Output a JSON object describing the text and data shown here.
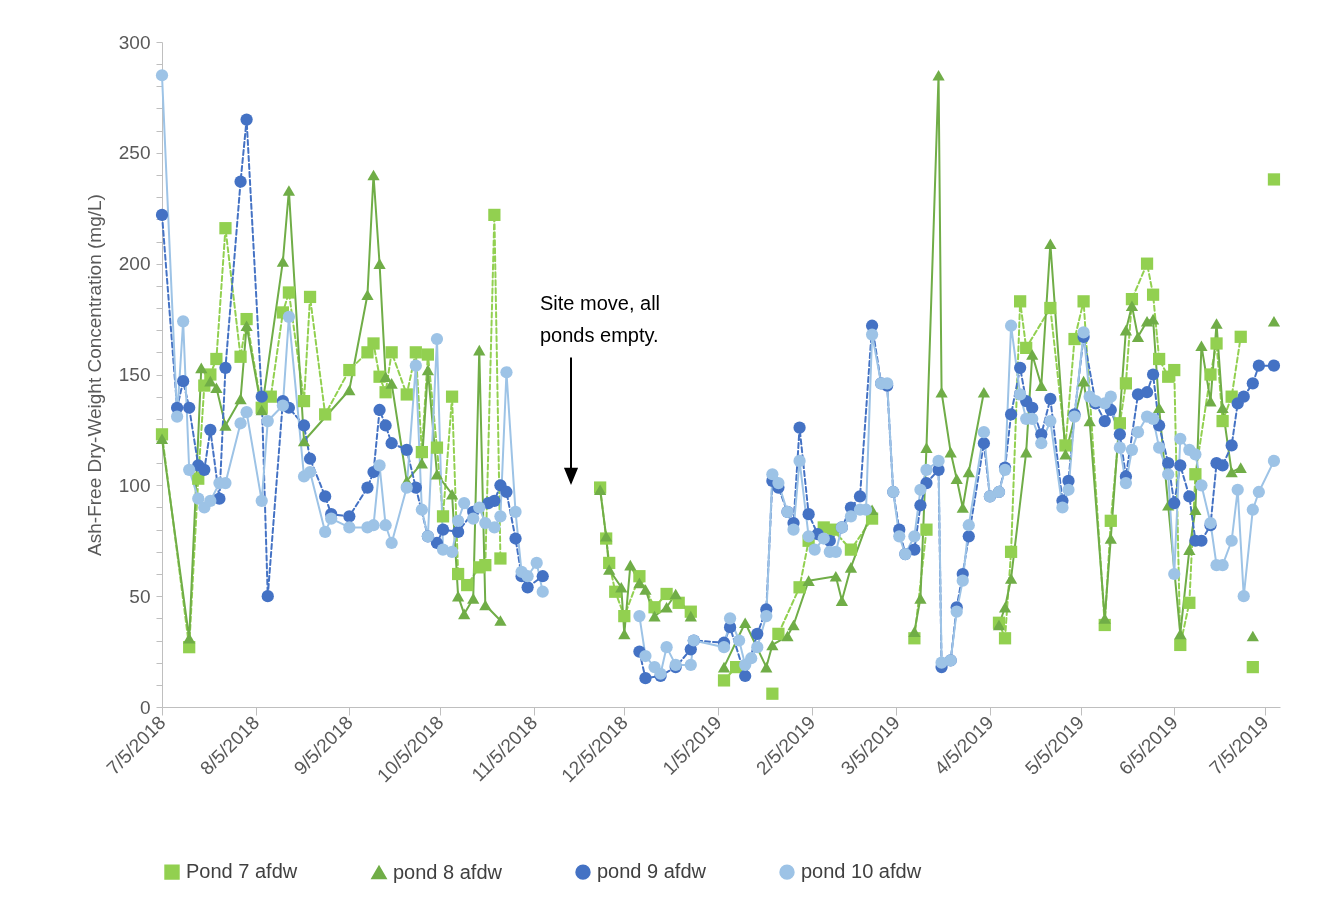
{
  "chart_data": {
    "type": "line",
    "ylabel": "Ash-Free Dry-Weight Concentration (mg/L)",
    "legend": "bottom",
    "xlim": [
      "2018-07-05",
      "2019-07-10"
    ],
    "xticks": [
      {
        "value": "2018-07-05",
        "label": "7/5/2018"
      },
      {
        "value": "2018-08-05",
        "label": "8/5/2018"
      },
      {
        "value": "2018-09-05",
        "label": "9/5/2018"
      },
      {
        "value": "2018-10-05",
        "label": "10/5/2018"
      },
      {
        "value": "2018-11-05",
        "label": "11/5/2018"
      },
      {
        "value": "2018-12-05",
        "label": "12/5/2018"
      },
      {
        "value": "2019-01-05",
        "label": "1/5/2019"
      },
      {
        "value": "2019-02-05",
        "label": "2/5/2019"
      },
      {
        "value": "2019-03-05",
        "label": "3/5/2019"
      },
      {
        "value": "2019-04-05",
        "label": "4/5/2019"
      },
      {
        "value": "2019-05-05",
        "label": "5/5/2019"
      },
      {
        "value": "2019-06-05",
        "label": "6/5/2019"
      },
      {
        "value": "2019-07-05",
        "label": "7/5/2019"
      }
    ],
    "ylim": [
      0,
      300
    ],
    "yticks": [
      0,
      {
        "value": 10,
        "label": null
      },
      {
        "value": 20,
        "label": null
      },
      {
        "value": 30,
        "label": null
      },
      {
        "value": 40,
        "label": null
      },
      50,
      {
        "value": 60,
        "label": null
      },
      {
        "value": 70,
        "label": null
      },
      {
        "value": 80,
        "label": null
      },
      {
        "value": 90,
        "label": null
      },
      100,
      {
        "value": 110,
        "label": null
      },
      {
        "value": 120,
        "label": null
      },
      {
        "value": 130,
        "label": null
      },
      {
        "value": 140,
        "label": null
      },
      150,
      {
        "value": 160,
        "label": null
      },
      {
        "value": 170,
        "label": null
      },
      {
        "value": 180,
        "label": null
      },
      {
        "value": 190,
        "label": null
      },
      200,
      {
        "value": 210,
        "label": null
      },
      {
        "value": 220,
        "label": null
      },
      {
        "value": 230,
        "label": null
      },
      {
        "value": 240,
        "label": null
      },
      250,
      {
        "value": 260,
        "label": null
      },
      {
        "value": 270,
        "label": null
      },
      {
        "value": 280,
        "label": null
      },
      {
        "value": 290,
        "label": null
      },
      300
    ],
    "annotations": [
      "Site move, all ponds empty."
    ],
    "series": [
      {
        "name": "Pond 7 afdw",
        "color": "#92d050",
        "marker": "square",
        "line_style": "dashed",
        "x": [
          "2018-07-05",
          "2018-07-14",
          "2018-07-17",
          "2018-07-19",
          "2018-07-21",
          "2018-07-23",
          "2018-07-26",
          "2018-07-31",
          "2018-08-02",
          "2018-08-07",
          "2018-08-10",
          "2018-08-14",
          "2018-08-16",
          "2018-08-21",
          "2018-08-23",
          "2018-08-28",
          "2018-09-05",
          "2018-09-11",
          "2018-09-13",
          "2018-09-15",
          "2018-09-17",
          "2018-09-19",
          "2018-09-24",
          "2018-09-27",
          "2018-09-29",
          "2018-10-01",
          "2018-10-04",
          "2018-10-06",
          "2018-10-09",
          "2018-10-11",
          "2018-10-14",
          "2018-10-18",
          "2018-10-20",
          "2018-10-23",
          "2018-10-25",
          "2018-11-15",
          "2018-11-27",
          "2018-11-29",
          "2018-11-30",
          "2018-12-02",
          "2018-12-05",
          "2018-12-10",
          "2018-12-15",
          "2018-12-19",
          "2018-12-23",
          "2018-12-27",
          "2019-01-02",
          "2019-01-07",
          "2019-01-11",
          "2019-01-17",
          "2019-01-23",
          "2019-01-24",
          "2019-01-25",
          "2019-02-01",
          "2019-02-04",
          "2019-02-09",
          "2019-02-12",
          "2019-02-18",
          "2019-02-25",
          "2019-03-05",
          "2019-03-11",
          "2019-03-15",
          "2019-03-28",
          "2019-04-08",
          "2019-04-10",
          "2019-04-12",
          "2019-04-15",
          "2019-04-17",
          "2019-04-25",
          "2019-04-30",
          "2019-05-03",
          "2019-05-06",
          "2019-05-13",
          "2019-05-15",
          "2019-05-18",
          "2019-05-20",
          "2019-05-22",
          "2019-05-27",
          "2019-05-29",
          "2019-05-31",
          "2019-06-03",
          "2019-06-05",
          "2019-06-07",
          "2019-06-10",
          "2019-06-12",
          "2019-06-17",
          "2019-06-19",
          "2019-06-21",
          "2019-06-24",
          "2019-06-27",
          "2019-06-29",
          "2019-07-01",
          "2019-07-05",
          "2019-07-08"
        ],
        "values": [
          123,
          27,
          103,
          145,
          150,
          157,
          216,
          158,
          175,
          135,
          140,
          178,
          187,
          138,
          185,
          132,
          152,
          160,
          164,
          149,
          142,
          160,
          141,
          160,
          115,
          159,
          117,
          86,
          140,
          60,
          55,
          63,
          64,
          222,
          67,
          null,
          99,
          76,
          65,
          52,
          41,
          59,
          45,
          51,
          47,
          43,
          null,
          12,
          18,
          null,
          6,
          null,
          33,
          54,
          75,
          81,
          80,
          71,
          85,
          null,
          31,
          80,
          null,
          38,
          31,
          70,
          183,
          162,
          180,
          118,
          166,
          183,
          37,
          84,
          128,
          146,
          184,
          200,
          186,
          157,
          149,
          152,
          28,
          47,
          105,
          150,
          164,
          129,
          140,
          167,
          null,
          18,
          null,
          238
        ]
      },
      {
        "name": "pond 8 afdw",
        "color": "#70ad47",
        "marker": "triangle",
        "line_style": "solid",
        "x": [
          "2018-07-05",
          "2018-07-14",
          "2018-07-18",
          "2018-07-21",
          "2018-07-23",
          "2018-07-26",
          "2018-07-31",
          "2018-08-02",
          "2018-08-07",
          "2018-08-14",
          "2018-08-16",
          "2018-08-21",
          "2018-09-05",
          "2018-09-11",
          "2018-09-13",
          "2018-09-15",
          "2018-09-17",
          "2018-09-19",
          "2018-09-24",
          "2018-09-29",
          "2018-10-01",
          "2018-10-04",
          "2018-10-09",
          "2018-10-11",
          "2018-10-13",
          "2018-10-16",
          "2018-10-18",
          "2018-10-20",
          "2018-10-25",
          "2018-11-15",
          "2018-11-27",
          "2018-11-29",
          "2018-11-30",
          "2018-12-04",
          "2018-12-05",
          "2018-12-07",
          "2018-12-10",
          "2018-12-12",
          "2018-12-15",
          "2018-12-19",
          "2018-12-22",
          "2018-12-27",
          "2019-01-02",
          "2019-01-07",
          "2019-01-14",
          "2019-01-21",
          "2019-01-23",
          "2019-01-28",
          "2019-01-30",
          "2019-02-04",
          "2019-02-13",
          "2019-02-15",
          "2019-02-18",
          "2019-02-25",
          "2019-03-05",
          "2019-03-11",
          "2019-03-13",
          "2019-03-15",
          "2019-03-19",
          "2019-03-20",
          "2019-03-23",
          "2019-03-25",
          "2019-03-27",
          "2019-03-29",
          "2019-04-03",
          "2019-04-06",
          "2019-04-08",
          "2019-04-10",
          "2019-04-12",
          "2019-04-17",
          "2019-04-19",
          "2019-04-22",
          "2019-04-25",
          "2019-04-30",
          "2019-05-06",
          "2019-05-08",
          "2019-05-13",
          "2019-05-15",
          "2019-05-20",
          "2019-05-22",
          "2019-05-24",
          "2019-05-27",
          "2019-05-29",
          "2019-05-31",
          "2019-06-03",
          "2019-06-07",
          "2019-06-10",
          "2019-06-12",
          "2019-06-14",
          "2019-06-17",
          "2019-06-19",
          "2019-06-21",
          "2019-06-24",
          "2019-06-27",
          "2019-06-29",
          "2019-07-01",
          "2019-07-05",
          "2019-07-08"
        ],
        "values": [
          121,
          31,
          153,
          147,
          144,
          127,
          139,
          172,
          134,
          201,
          233,
          120,
          143,
          186,
          240,
          200,
          149,
          146,
          102,
          110,
          152,
          105,
          96,
          50,
          42,
          49,
          161,
          46,
          39,
          null,
          98,
          77,
          62,
          54,
          33,
          64,
          56,
          53,
          41,
          45,
          51,
          41,
          null,
          18,
          38,
          18,
          28,
          32,
          37,
          57,
          59,
          48,
          63,
          89,
          null,
          34,
          49,
          117,
          285,
          142,
          115,
          103,
          90,
          106,
          142,
          null,
          37,
          45,
          58,
          115,
          159,
          145,
          209,
          114,
          147,
          129,
          40,
          76,
          170,
          181,
          167,
          174,
          175,
          135,
          91,
          33,
          71,
          89,
          163,
          138,
          173,
          135,
          106,
          108,
          null,
          32,
          null,
          174
        ]
      },
      {
        "name": "pond 9 afdw",
        "color": "#4472c4",
        "marker": "circle",
        "line_style": "dashed",
        "x": [
          "2018-07-05",
          "2018-07-10",
          "2018-07-12",
          "2018-07-14",
          "2018-07-17",
          "2018-07-19",
          "2018-07-21",
          "2018-07-24",
          "2018-07-26",
          "2018-07-31",
          "2018-08-02",
          "2018-08-07",
          "2018-08-09",
          "2018-08-14",
          "2018-08-16",
          "2018-08-21",
          "2018-08-23",
          "2018-08-28",
          "2018-08-30",
          "2018-09-05",
          "2018-09-11",
          "2018-09-13",
          "2018-09-15",
          "2018-09-17",
          "2018-09-19",
          "2018-09-24",
          "2018-09-27",
          "2018-10-01",
          "2018-10-04",
          "2018-10-06",
          "2018-10-11",
          "2018-10-16",
          "2018-10-21",
          "2018-10-23",
          "2018-10-25",
          "2018-10-27",
          "2018-10-30",
          "2018-11-01",
          "2018-11-03",
          "2018-11-08",
          "2018-11-25",
          "2018-12-10",
          "2018-12-12",
          "2018-12-17",
          "2018-12-22",
          "2018-12-27",
          "2018-12-28",
          "2019-01-07",
          "2019-01-09",
          "2019-01-14",
          "2019-01-18",
          "2019-01-21",
          "2019-01-23",
          "2019-01-25",
          "2019-01-28",
          "2019-01-30",
          "2019-02-01",
          "2019-02-04",
          "2019-02-07",
          "2019-02-11",
          "2019-02-15",
          "2019-02-18",
          "2019-02-21",
          "2019-02-25",
          "2019-02-28",
          "2019-03-02",
          "2019-03-04",
          "2019-03-06",
          "2019-03-08",
          "2019-03-11",
          "2019-03-13",
          "2019-03-15",
          "2019-03-19",
          "2019-03-20",
          "2019-03-23",
          "2019-03-25",
          "2019-03-27",
          "2019-03-29",
          "2019-04-03",
          "2019-04-05",
          "2019-04-08",
          "2019-04-10",
          "2019-04-12",
          "2019-04-15",
          "2019-04-17",
          "2019-04-19",
          "2019-04-22",
          "2019-04-25",
          "2019-04-29",
          "2019-05-01",
          "2019-05-03",
          "2019-05-06",
          "2019-05-10",
          "2019-05-13",
          "2019-05-15",
          "2019-05-18",
          "2019-05-20",
          "2019-05-24",
          "2019-05-27",
          "2019-05-29",
          "2019-05-31",
          "2019-06-03",
          "2019-06-05",
          "2019-06-07",
          "2019-06-10",
          "2019-06-12",
          "2019-06-14",
          "2019-06-17",
          "2019-06-19",
          "2019-06-21",
          "2019-06-24",
          "2019-06-26",
          "2019-06-28",
          "2019-07-01",
          "2019-07-03",
          "2019-07-08"
        ],
        "values": [
          222,
          135,
          147,
          135,
          109,
          107,
          125,
          94,
          153,
          237,
          265,
          140,
          50,
          138,
          135,
          127,
          112,
          95,
          87,
          86,
          99,
          106,
          134,
          127,
          119,
          116,
          99,
          77,
          74,
          80,
          79,
          88,
          92,
          93,
          100,
          97,
          76,
          59,
          54,
          59,
          null,
          25,
          13,
          14,
          18,
          26,
          30,
          29,
          36,
          14,
          33,
          44,
          102,
          99,
          88,
          83,
          126,
          87,
          78,
          75,
          81,
          90,
          95,
          172,
          146,
          145,
          97,
          80,
          69,
          71,
          91,
          101,
          107,
          18,
          21,
          45,
          60,
          77,
          119,
          95,
          97,
          108,
          132,
          153,
          138,
          135,
          123,
          139,
          93,
          102,
          132,
          167,
          137,
          129,
          134,
          123,
          104,
          141,
          142,
          150,
          127,
          110,
          92,
          109,
          95,
          75,
          75,
          82,
          110,
          109,
          118,
          137,
          140,
          146,
          154,
          154
        ]
      },
      {
        "name": "pond 10 afdw",
        "color": "#9dc3e6",
        "marker": "circle",
        "line_style": "solid",
        "x": [
          "2018-07-05",
          "2018-07-10",
          "2018-07-12",
          "2018-07-14",
          "2018-07-17",
          "2018-07-19",
          "2018-07-21",
          "2018-07-24",
          "2018-07-26",
          "2018-07-31",
          "2018-08-02",
          "2018-08-07",
          "2018-08-09",
          "2018-08-14",
          "2018-08-16",
          "2018-08-21",
          "2018-08-23",
          "2018-08-28",
          "2018-08-30",
          "2018-09-05",
          "2018-09-11",
          "2018-09-13",
          "2018-09-15",
          "2018-09-17",
          "2018-09-19",
          "2018-09-24",
          "2018-09-27",
          "2018-09-29",
          "2018-10-01",
          "2018-10-04",
          "2018-10-06",
          "2018-10-09",
          "2018-10-11",
          "2018-10-13",
          "2018-10-16",
          "2018-10-18",
          "2018-10-20",
          "2018-10-23",
          "2018-10-25",
          "2018-10-27",
          "2018-10-30",
          "2018-11-01",
          "2018-11-03",
          "2018-11-06",
          "2018-11-08",
          "2018-11-25",
          "2018-12-10",
          "2018-12-12",
          "2018-12-15",
          "2018-12-17",
          "2018-12-19",
          "2018-12-22",
          "2018-12-27",
          "2018-12-28",
          "2019-01-07",
          "2019-01-09",
          "2019-01-12",
          "2019-01-14",
          "2019-01-16",
          "2019-01-18",
          "2019-01-21",
          "2019-01-23",
          "2019-01-25",
          "2019-01-28",
          "2019-01-30",
          "2019-02-01",
          "2019-02-04",
          "2019-02-06",
          "2019-02-09",
          "2019-02-11",
          "2019-02-13",
          "2019-02-15",
          "2019-02-18",
          "2019-02-21",
          "2019-02-23",
          "2019-02-25",
          "2019-02-28",
          "2019-03-02",
          "2019-03-04",
          "2019-03-06",
          "2019-03-08",
          "2019-03-11",
          "2019-03-13",
          "2019-03-15",
          "2019-03-19",
          "2019-03-20",
          "2019-03-23",
          "2019-03-25",
          "2019-03-27",
          "2019-03-29",
          "2019-04-03",
          "2019-04-05",
          "2019-04-08",
          "2019-04-10",
          "2019-04-12",
          "2019-04-15",
          "2019-04-17",
          "2019-04-19",
          "2019-04-22",
          "2019-04-25",
          "2019-04-29",
          "2019-05-01",
          "2019-05-03",
          "2019-05-06",
          "2019-05-08",
          "2019-05-10",
          "2019-05-13",
          "2019-05-15",
          "2019-05-18",
          "2019-05-20",
          "2019-05-22",
          "2019-05-24",
          "2019-05-27",
          "2019-05-29",
          "2019-05-31",
          "2019-06-03",
          "2019-06-05",
          "2019-06-07",
          "2019-06-10",
          "2019-06-12",
          "2019-06-14",
          "2019-06-17",
          "2019-06-19",
          "2019-06-21",
          "2019-06-24",
          "2019-06-26",
          "2019-06-28",
          "2019-07-01",
          "2019-07-03",
          "2019-07-08"
        ],
        "values": [
          285,
          131,
          174,
          107,
          94,
          90,
          93,
          101,
          101,
          128,
          133,
          93,
          129,
          136,
          176,
          104,
          106,
          79,
          85,
          81,
          81,
          82,
          109,
          82,
          74,
          99,
          154,
          89,
          77,
          166,
          71,
          70,
          84,
          92,
          85,
          90,
          83,
          81,
          86,
          151,
          88,
          61,
          59,
          65,
          52,
          null,
          41,
          23,
          18,
          15,
          27,
          19,
          19,
          30,
          27,
          40,
          30,
          19,
          22,
          27,
          41,
          105,
          101,
          88,
          80,
          111,
          77,
          71,
          76,
          70,
          70,
          81,
          86,
          89,
          89,
          168,
          146,
          146,
          97,
          77,
          69,
          77,
          98,
          107,
          111,
          20,
          21,
          43,
          57,
          82,
          124,
          95,
          97,
          107,
          172,
          141,
          130,
          130,
          119,
          129,
          90,
          98,
          131,
          169,
          140,
          138,
          137,
          140,
          117,
          101,
          116,
          124,
          131,
          130,
          117,
          105,
          60,
          121,
          116,
          114,
          100,
          83,
          64,
          64,
          75,
          98,
          50,
          89,
          97,
          111
        ]
      }
    ]
  }
}
